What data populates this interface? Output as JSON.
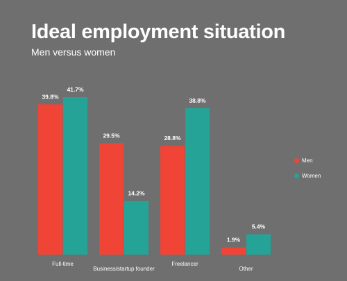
{
  "chart_data": {
    "type": "bar",
    "title": "Ideal employment situation",
    "subtitle": "Men versus women",
    "categories": [
      "Full-time",
      "Business/startup founder",
      "Freelancer",
      "Other"
    ],
    "series": [
      {
        "name": "Men",
        "values": [
          39.8,
          29.5,
          28.8,
          1.9
        ],
        "labels": [
          "39.8%",
          "29.5%",
          "28.8%",
          "1.9%"
        ],
        "color": "#f04436"
      },
      {
        "name": "Women",
        "values": [
          41.7,
          14.2,
          38.8,
          5.4
        ],
        "labels": [
          "41.7%",
          "14.2%",
          "38.8%",
          "5.4%"
        ],
        "color": "#25a396"
      }
    ],
    "ylim": [
      0,
      41.7
    ],
    "grid": false,
    "legend_position": "right"
  },
  "colors": {
    "background": "#6f6f6f",
    "text": "#ffffff"
  }
}
